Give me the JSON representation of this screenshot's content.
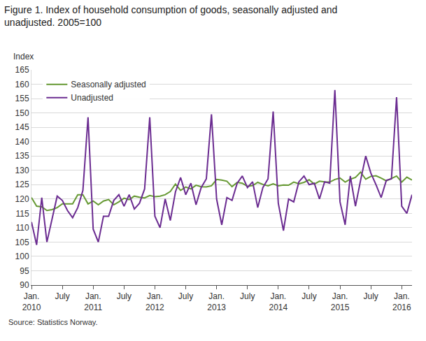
{
  "chart_data": {
    "type": "line",
    "title": "Figure 1. Index of household consumption of goods, seasonally adjusted and\nunadjusted. 2005=100",
    "y_label": "Index",
    "source": "Source: Statistics Norway.",
    "categories": [
      "Jan.\n2010",
      null,
      null,
      null,
      null,
      null,
      "July",
      null,
      null,
      null,
      null,
      null,
      "Jan.\n2011",
      null,
      null,
      null,
      null,
      null,
      "July",
      null,
      null,
      null,
      null,
      null,
      "Jan.\n2012",
      null,
      null,
      null,
      null,
      null,
      "July",
      null,
      null,
      null,
      null,
      null,
      "Jan.\n2013",
      null,
      null,
      null,
      null,
      null,
      "July",
      null,
      null,
      null,
      null,
      null,
      "Jan.\n2014",
      null,
      null,
      null,
      null,
      null,
      "July",
      null,
      null,
      null,
      null,
      null,
      "Jan.\n2015",
      null,
      null,
      null,
      null,
      null,
      "July",
      null,
      null,
      null,
      null,
      null,
      "Jan.\n2016",
      null,
      null
    ],
    "series": [
      {
        "name": "Seasonally adjusted",
        "color": "#669933",
        "values": [
          120.5,
          117.5,
          117.3,
          116,
          116.3,
          117,
          118.3,
          118.3,
          118.3,
          121.5,
          121.5,
          118.3,
          119.3,
          118,
          119.3,
          119.8,
          118,
          119,
          120.3,
          119.8,
          121,
          120.6,
          120.4,
          121.2,
          120.8,
          121,
          121.5,
          122.6,
          125.2,
          123,
          124.2,
          123.5,
          124.8,
          124.3,
          124.2,
          124.6,
          126.8,
          126.6,
          126.2,
          124.3,
          125.8,
          125.5,
          124.4,
          124.7,
          125.8,
          125.1,
          124.6,
          125.3,
          124.6,
          124.9,
          124.8,
          125.9,
          125.3,
          125.8,
          126.7,
          125.2,
          126.2,
          126,
          125.9,
          126.8,
          127.3,
          125.9,
          126.9,
          127.5,
          129.4,
          126.9,
          127.9,
          128.1,
          127.3,
          126.3,
          127.1,
          128,
          125.9,
          127.6,
          126.6
        ]
      },
      {
        "name": "Unadjusted",
        "color": "#6b2c91",
        "values": [
          112,
          104,
          120.5,
          105,
          113,
          121,
          119.5,
          116,
          113.5,
          117,
          123,
          148.5,
          109.5,
          105,
          114,
          114,
          119.5,
          121.5,
          117.5,
          121.5,
          116.5,
          118.5,
          123.5,
          148.5,
          114,
          110,
          120,
          112.5,
          122.5,
          127.5,
          121.5,
          125.5,
          118,
          124,
          127,
          149.5,
          120,
          111,
          120.5,
          119.5,
          125.5,
          128,
          124,
          126,
          117,
          124,
          127,
          150.5,
          118.5,
          109,
          120,
          119,
          126,
          128,
          125,
          125.5,
          120,
          126,
          125.5,
          158,
          119,
          111,
          128,
          117.5,
          126.5,
          135,
          129,
          125,
          120.5,
          126.5,
          127,
          155.5,
          117.5,
          115,
          121.5
        ]
      }
    ],
    "ylim": [
      90,
      165
    ],
    "yticks": [
      90,
      95,
      100,
      105,
      110,
      115,
      120,
      125,
      130,
      135,
      140,
      145,
      150,
      155,
      160,
      165
    ],
    "grid": true,
    "legend": "upper left"
  }
}
